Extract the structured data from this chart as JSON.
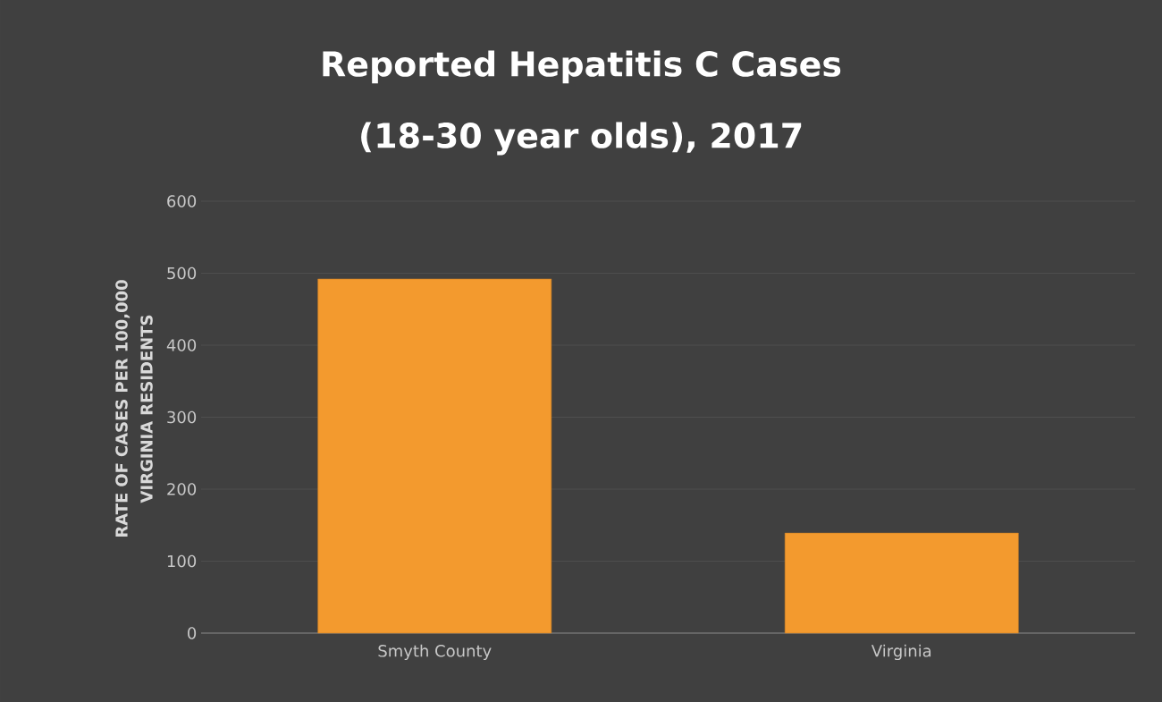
{
  "chart_data": {
    "type": "bar",
    "title": "Reported Hepatitis C Cases (18-30 year olds), 2017",
    "ylabel": "RATE OF CASES PER 100,000 VIRGINIA RESIDENTS",
    "categories": [
      "Smyth County",
      "Virginia"
    ],
    "values": [
      492,
      139
    ],
    "color": "#f39a2e",
    "ylim": [
      0,
      600
    ],
    "yticks": [
      0,
      100,
      200,
      300,
      400,
      500,
      600
    ],
    "grid": "y"
  }
}
